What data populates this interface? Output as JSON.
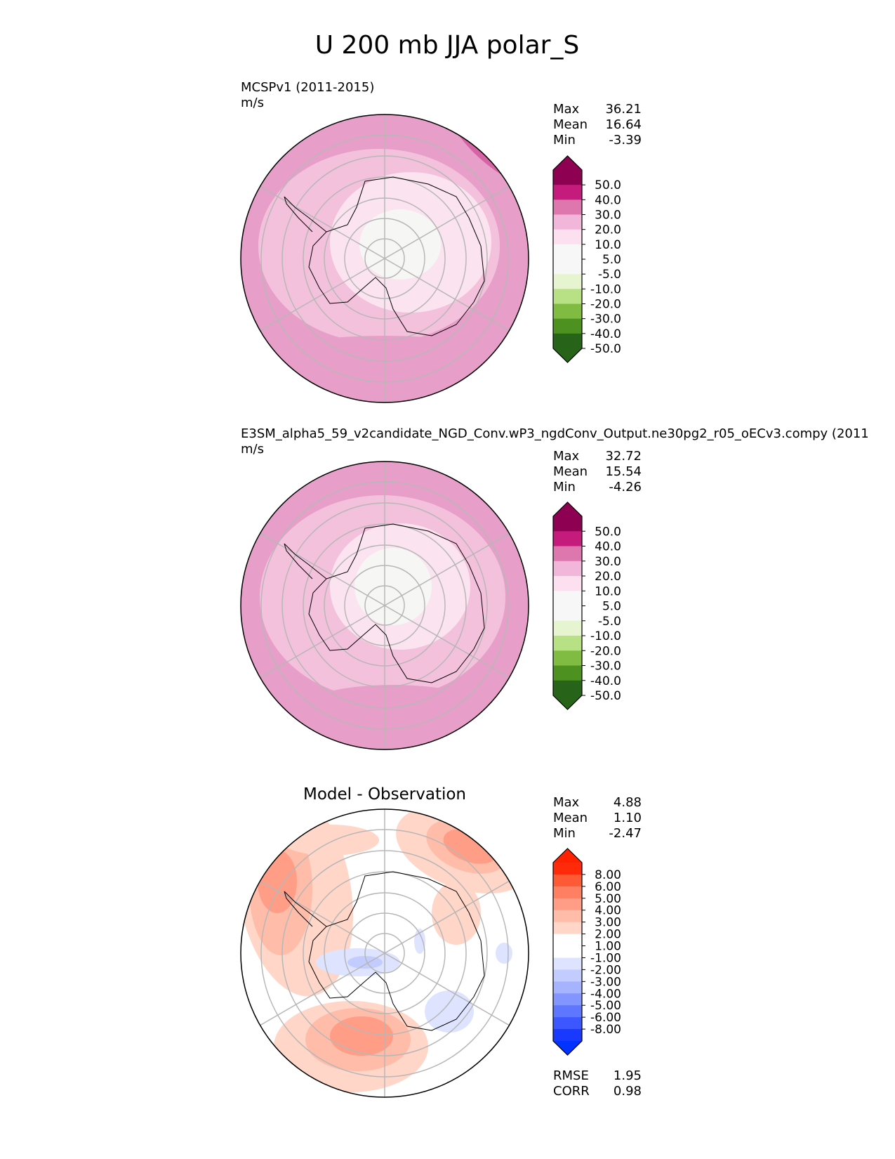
{
  "title": "U 200 mb JJA polar_S",
  "chart_data": [
    {
      "type": "heatmap",
      "projection": "south-polar-stereographic",
      "title": "MCSPv1 (2011-2015)",
      "units": "m/s",
      "stats": [
        {
          "label": "Max",
          "value": "36.21"
        },
        {
          "label": "Mean",
          "value": "16.64"
        },
        {
          "label": "Min",
          "value": "-3.39"
        }
      ],
      "colorbar": {
        "extend": "both",
        "levels": [
          "50.0",
          "40.0",
          "30.0",
          "20.0",
          "10.0",
          "5.0",
          "-5.0",
          "-10.0",
          "-20.0",
          "-30.0",
          "-40.0",
          "-50.0"
        ],
        "colors": [
          "#8e0152",
          "#c51b7d",
          "#de77ae",
          "#f1b6da",
          "#fde0ef",
          "#f7f7f7",
          "#f7f7f7",
          "#e6f5d0",
          "#b8e186",
          "#7fbc41",
          "#4d9221",
          "#276419"
        ],
        "top_color": "#8e0152",
        "bottom_color": "#276419"
      }
    },
    {
      "type": "heatmap",
      "projection": "south-polar-stereographic",
      "title": "E3SM_alpha5_59_v2candidate_NGD_Conv.wP3_ngdConv_Output.ne30pg2_r05_oECv3.compy (2011",
      "units": "m/s",
      "stats": [
        {
          "label": "Max",
          "value": "32.72"
        },
        {
          "label": "Mean",
          "value": "15.54"
        },
        {
          "label": "Min",
          "value": "-4.26"
        }
      ],
      "colorbar": {
        "extend": "both",
        "levels": [
          "50.0",
          "40.0",
          "30.0",
          "20.0",
          "10.0",
          "5.0",
          "-5.0",
          "-10.0",
          "-20.0",
          "-30.0",
          "-40.0",
          "-50.0"
        ],
        "colors": [
          "#8e0152",
          "#c51b7d",
          "#de77ae",
          "#f1b6da",
          "#fde0ef",
          "#f7f7f7",
          "#f7f7f7",
          "#e6f5d0",
          "#b8e186",
          "#7fbc41",
          "#4d9221",
          "#276419"
        ],
        "top_color": "#8e0152",
        "bottom_color": "#276419"
      }
    },
    {
      "type": "heatmap",
      "projection": "south-polar-stereographic",
      "title": "Model - Observation",
      "units": "",
      "stats": [
        {
          "label": "Max",
          "value": "4.88"
        },
        {
          "label": "Mean",
          "value": "1.10"
        },
        {
          "label": "Min",
          "value": "-2.47"
        }
      ],
      "metrics": [
        {
          "label": "RMSE",
          "value": "1.95"
        },
        {
          "label": "CORR",
          "value": "0.98"
        }
      ],
      "colorbar": {
        "extend": "both",
        "levels": [
          "8.00",
          "6.00",
          "5.00",
          "4.00",
          "3.00",
          "2.00",
          "1.00",
          "-1.00",
          "-2.00",
          "-3.00",
          "-4.00",
          "-5.00",
          "-6.00",
          "-8.00"
        ],
        "colors": [
          "#ff2a0a",
          "#ff5a36",
          "#ff7f62",
          "#ff9d86",
          "#ffbca8",
          "#ffd6c8",
          "#ffffff",
          "#ffffff",
          "#dee4ff",
          "#c2ccff",
          "#a6b4ff",
          "#8395ff",
          "#5f76ff",
          "#3c57ff",
          "#1a39ff"
        ],
        "top_color": "#ff2200",
        "bottom_color": "#0033ff"
      }
    }
  ]
}
